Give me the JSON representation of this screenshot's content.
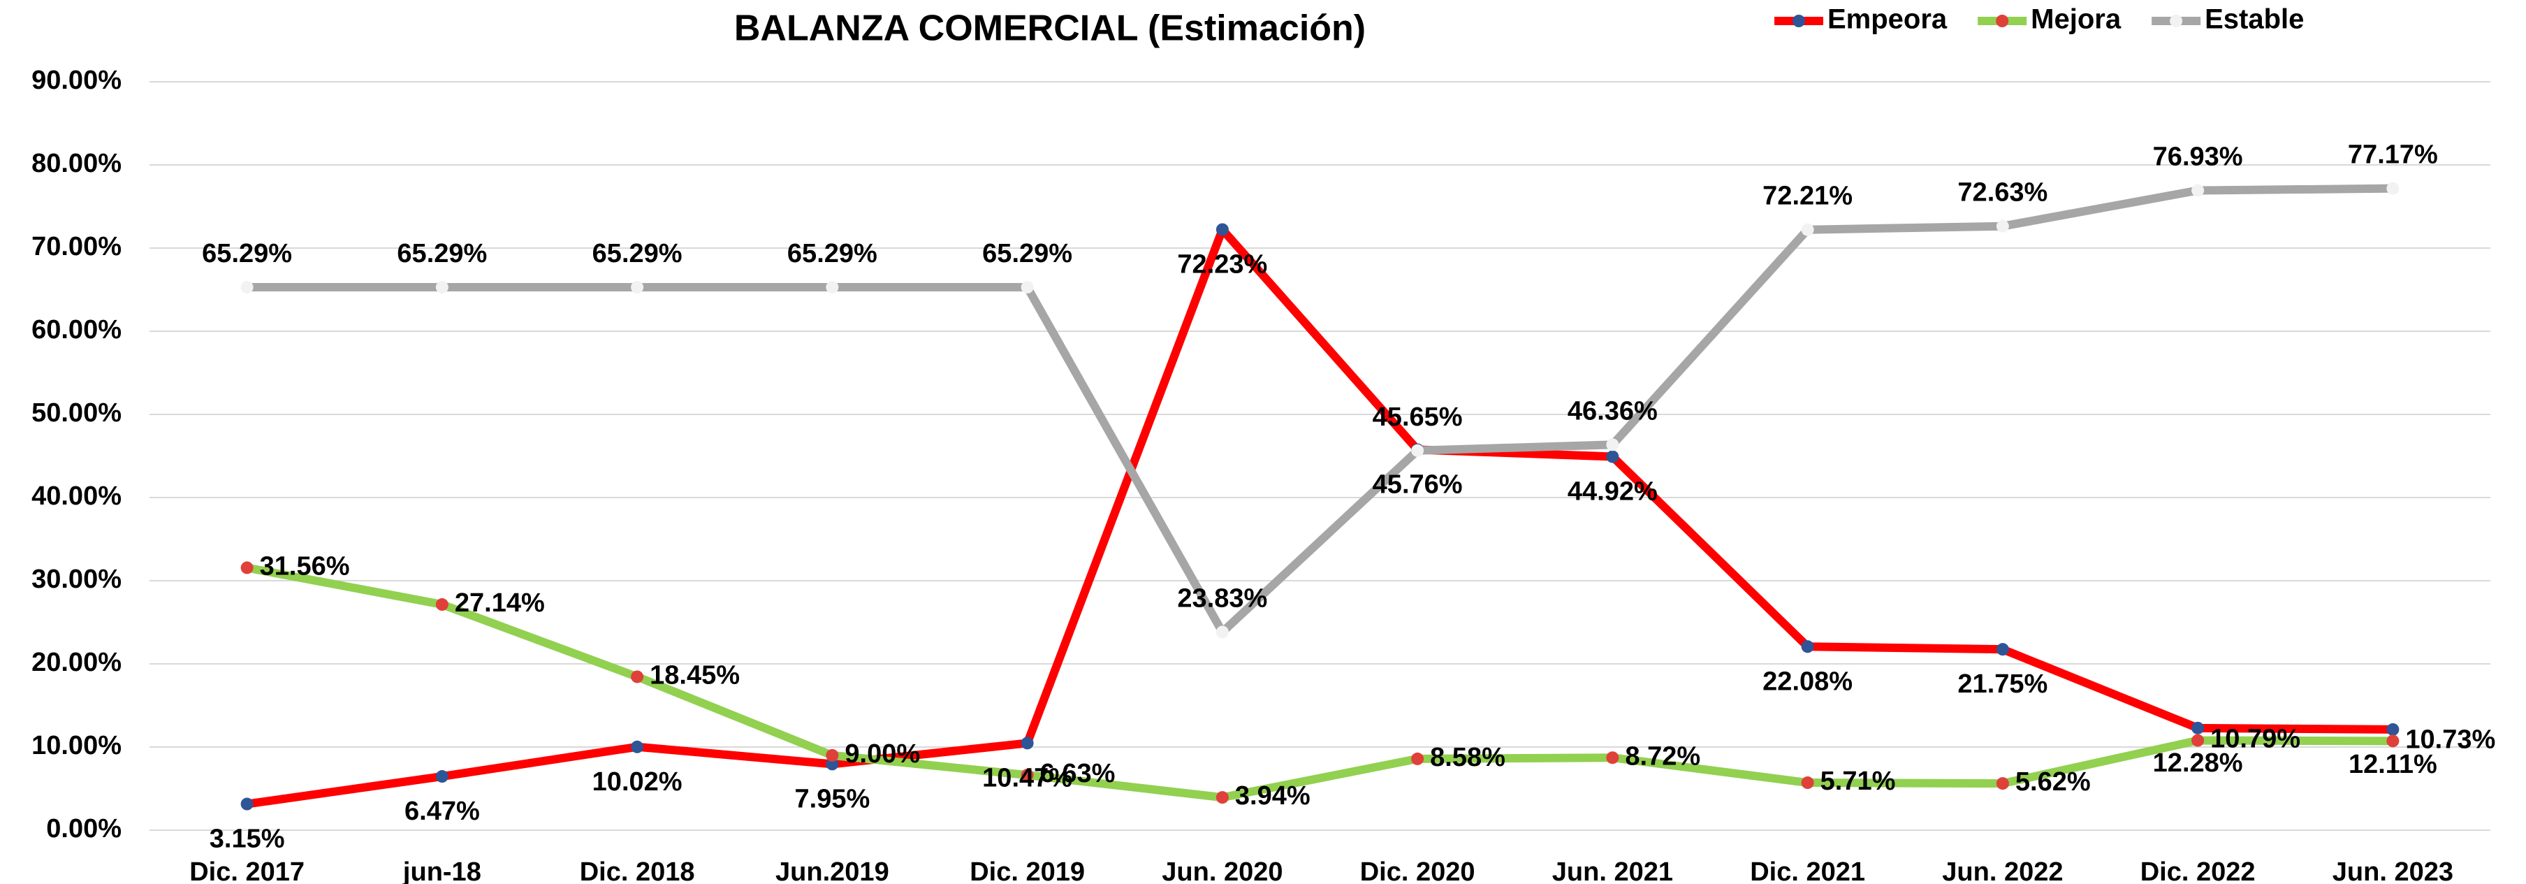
{
  "chart_data": {
    "type": "line",
    "title": "BALANZA COMERCIAL (Estimación)",
    "categories": [
      "Dic. 2017",
      "jun-18",
      "Dic. 2018",
      "Jun.2019",
      "Dic. 2019",
      "Jun. 2020",
      "Dic. 2020",
      "Jun. 2021",
      "Dic. 2021",
      "Jun. 2022",
      "Dic. 2022",
      "Jun. 2023"
    ],
    "series": [
      {
        "name": "Empeora",
        "color": "#ff0000",
        "marker_color": "#2f5597",
        "values": [
          3.15,
          6.47,
          10.02,
          7.95,
          10.47,
          72.23,
          45.76,
          44.92,
          22.08,
          21.75,
          12.28,
          12.11
        ],
        "value_labels": [
          "3.15%",
          "6.47%",
          "10.02%",
          "7.95%",
          "10.47%",
          "72.23%",
          "45.76%",
          "44.92%",
          "22.08%",
          "21.75%",
          "12.28%",
          "12.11%"
        ]
      },
      {
        "name": "Mejora",
        "color": "#92d050",
        "marker_color": "#e0403a",
        "values": [
          31.56,
          27.14,
          18.45,
          9.0,
          6.63,
          3.94,
          8.58,
          8.72,
          5.71,
          5.62,
          10.79,
          10.73
        ],
        "value_labels": [
          "31.56%",
          "27.14%",
          "18.45%",
          "9.00%",
          "6.63%",
          "3.94%",
          "8.58%",
          "8.72%",
          "5.71%",
          "5.62%",
          "10.79%",
          "10.73%"
        ]
      },
      {
        "name": "Estable",
        "color": "#a6a6a6",
        "marker_color": "#f2f2f2",
        "values": [
          65.29,
          65.29,
          65.29,
          65.29,
          65.29,
          23.83,
          45.65,
          46.36,
          72.21,
          72.63,
          76.93,
          77.17
        ],
        "value_labels": [
          "65.29%",
          "65.29%",
          "65.29%",
          "65.29%",
          "65.29%",
          "23.83%",
          "45.65%",
          "46.36%",
          "72.21%",
          "72.63%",
          "76.93%",
          "77.17%"
        ]
      }
    ],
    "ylim": [
      0,
      90
    ],
    "yticks": [
      {
        "value": 0,
        "label": "0.00%"
      },
      {
        "value": 10,
        "label": "10.00%"
      },
      {
        "value": 20,
        "label": "20.00%"
      },
      {
        "value": 30,
        "label": "30.00%"
      },
      {
        "value": 40,
        "label": "40.00%"
      },
      {
        "value": 50,
        "label": "50.00%"
      },
      {
        "value": 60,
        "label": "60.00%"
      },
      {
        "value": 70,
        "label": "70.00%"
      },
      {
        "value": 80,
        "label": "80.00%"
      },
      {
        "value": 90,
        "label": "90.00%"
      }
    ],
    "grid": true,
    "legend": "top-right"
  }
}
